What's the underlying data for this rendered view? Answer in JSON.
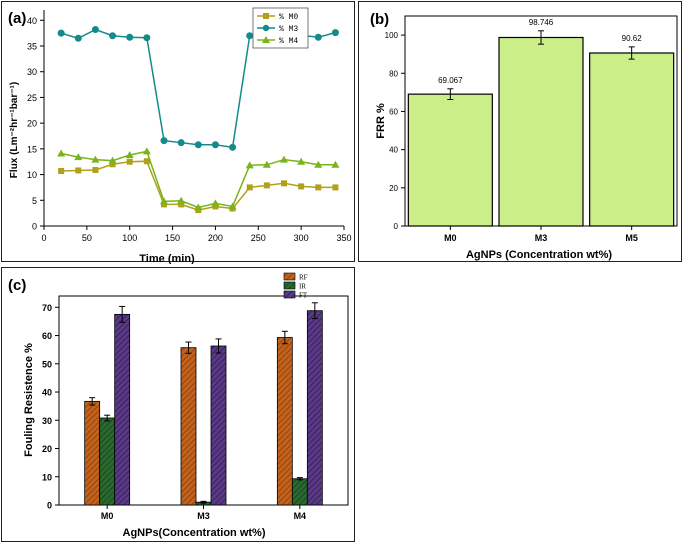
{
  "panels": {
    "a": {
      "label": "(a)"
    },
    "b": {
      "label": "(b)"
    },
    "c": {
      "label": "(c)"
    }
  },
  "chart_data": [
    {
      "id": "a",
      "type": "line",
      "title": "",
      "xlabel": "Time (min)",
      "ylabel": "Flux (Lm⁻²hr⁻¹bar⁻¹)",
      "xlim": [
        0,
        350
      ],
      "ylim": [
        0,
        42
      ],
      "xticks": [
        0,
        50,
        100,
        150,
        200,
        250,
        300,
        350
      ],
      "yticks": [
        0,
        5,
        10,
        15,
        20,
        25,
        30,
        35,
        40
      ],
      "x": [
        20,
        40,
        60,
        80,
        100,
        120,
        140,
        160,
        180,
        200,
        220,
        240,
        260,
        280,
        300,
        320,
        340
      ],
      "series": [
        {
          "name": "% M0",
          "legend": "% M0",
          "color": "#b0a01a",
          "marker": "square",
          "values": [
            10.7,
            10.8,
            10.9,
            12.0,
            12.5,
            12.6,
            4.2,
            4.2,
            3.1,
            3.8,
            3.4,
            7.5,
            7.9,
            8.3,
            7.7,
            7.5,
            7.5
          ]
        },
        {
          "name": "% M3",
          "legend": "% M3",
          "color": "#148a8a",
          "marker": "circle",
          "values": [
            37.5,
            36.5,
            38.2,
            37.0,
            36.7,
            36.6,
            16.6,
            16.2,
            15.8,
            15.8,
            15.3,
            37.0,
            36.3,
            36.7,
            37.1,
            36.7,
            37.6
          ]
        },
        {
          "name": "% M4",
          "legend": "% M4",
          "color": "#78b41a",
          "marker": "triangle",
          "values": [
            14.1,
            13.4,
            12.9,
            12.7,
            13.8,
            14.5,
            4.8,
            4.9,
            3.6,
            4.4,
            3.8,
            11.8,
            11.9,
            12.9,
            12.5,
            11.9,
            11.9
          ]
        }
      ]
    },
    {
      "id": "b",
      "type": "bar",
      "title": "",
      "xlabel": "AgNPs (Concentration wt%)",
      "ylabel": "FRR %",
      "ylim": [
        0,
        110
      ],
      "yticks": [
        0,
        20,
        40,
        60,
        80,
        100
      ],
      "categories": [
        "M0",
        "M3",
        "M5"
      ],
      "values": [
        69.067,
        98.746,
        90.62
      ],
      "value_labels": [
        "69.067",
        "98.746",
        "90.62"
      ],
      "errors": [
        2.8,
        3.5,
        3.2
      ],
      "bar_color": "#ccee88"
    },
    {
      "id": "c",
      "type": "bar",
      "title": "",
      "xlabel": "AgNPs(Concentration wt%)",
      "ylabel": "Fouling Resistence %",
      "ylim": [
        0,
        74
      ],
      "yticks": [
        0,
        10,
        20,
        30,
        40,
        50,
        60,
        70
      ],
      "categories": [
        "M0",
        "M3",
        "M4"
      ],
      "series": [
        {
          "name": "RF",
          "legend": "RF",
          "color": "#c4621c",
          "values": [
            36.7,
            55.7,
            59.3
          ],
          "errors": [
            1.3,
            2.0,
            2.2
          ]
        },
        {
          "name": "IR",
          "legend": "IR",
          "color": "#2a6a30",
          "values": [
            30.8,
            1.0,
            9.3
          ],
          "errors": [
            1.0,
            0.3,
            0.4
          ]
        },
        {
          "name": "FT",
          "legend": "FT",
          "color": "#5a3a88",
          "values": [
            67.5,
            56.3,
            68.8
          ],
          "errors": [
            2.8,
            2.5,
            2.8
          ]
        }
      ]
    }
  ]
}
